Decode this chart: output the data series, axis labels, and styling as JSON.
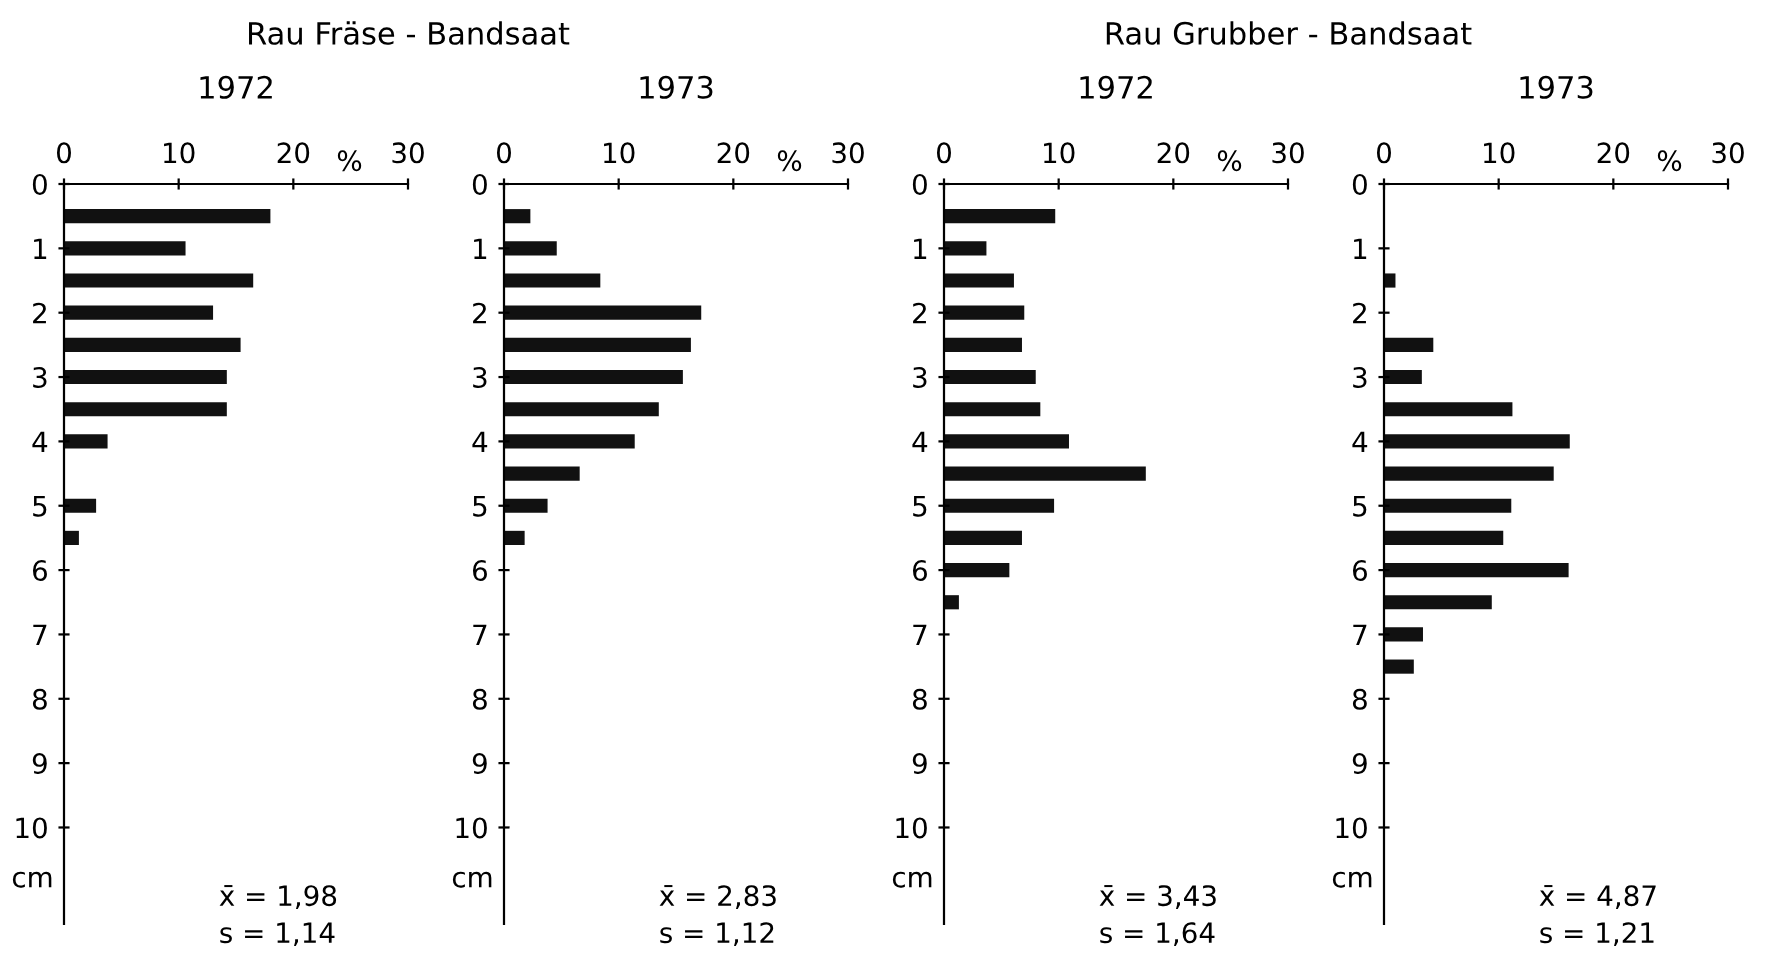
{
  "chart_data": [
    {
      "type": "bar",
      "orientation": "horizontal",
      "title": "Rau Fräse - Bandsaat",
      "subtitle": "1972",
      "xlabel": "%",
      "ylabel": "cm",
      "x": [
        0.5,
        1,
        1.5,
        2,
        2.5,
        3,
        3.5,
        4,
        5,
        5.5
      ],
      "values": [
        18.0,
        10.6,
        16.5,
        13.0,
        15.4,
        14.2,
        14.2,
        3.8,
        2.8,
        1.3
      ],
      "color": "#111111",
      "xlim": [
        0,
        30
      ],
      "xticks": [
        0,
        10,
        20,
        30
      ],
      "ylim": [
        11.5,
        0
      ],
      "yticks": [
        0,
        1,
        2,
        3,
        4,
        5,
        6,
        7,
        8,
        9,
        10
      ],
      "annotations": [
        "x̄ = 1,98",
        "s = 1,14"
      ],
      "grid": false
    },
    {
      "type": "bar",
      "orientation": "horizontal",
      "subtitle": "1973",
      "xlabel": "%",
      "ylabel": "cm",
      "x": [
        0.5,
        1,
        1.5,
        2,
        2.5,
        3,
        3.5,
        4,
        4.5,
        5,
        5.5
      ],
      "values": [
        2.3,
        4.6,
        8.4,
        17.2,
        16.3,
        15.6,
        13.5,
        11.4,
        6.6,
        3.8,
        1.8
      ],
      "color": "#111111",
      "xlim": [
        0,
        30
      ],
      "xticks": [
        0,
        10,
        20,
        30
      ],
      "ylim": [
        11.5,
        0
      ],
      "yticks": [
        0,
        1,
        2,
        3,
        4,
        5,
        6,
        7,
        8,
        9,
        10
      ],
      "annotations": [
        "x̄ = 2,83",
        "s = 1,12"
      ],
      "grid": false
    },
    {
      "type": "bar",
      "orientation": "horizontal",
      "title": "Rau Grubber - Bandsaat",
      "subtitle": "1972",
      "xlabel": "%",
      "ylabel": "cm",
      "x": [
        0.5,
        1,
        1.5,
        2,
        2.5,
        3,
        3.5,
        4,
        4.5,
        5,
        5.5,
        6,
        6.5
      ],
      "values": [
        9.7,
        3.7,
        6.1,
        7.0,
        6.8,
        8.0,
        8.4,
        10.9,
        17.6,
        9.6,
        6.8,
        5.7,
        1.3
      ],
      "color": "#111111",
      "xlim": [
        0,
        30
      ],
      "xticks": [
        0,
        10,
        20,
        30
      ],
      "ylim": [
        11.5,
        0
      ],
      "yticks": [
        0,
        1,
        2,
        3,
        4,
        5,
        6,
        7,
        8,
        9,
        10
      ],
      "annotations": [
        "x̄ = 3,43",
        "s = 1,64"
      ],
      "grid": false
    },
    {
      "type": "bar",
      "orientation": "horizontal",
      "subtitle": "1973",
      "xlabel": "%",
      "ylabel": "cm",
      "x": [
        1.5,
        2.5,
        3,
        3.5,
        4,
        4.5,
        5,
        5.5,
        6,
        6.5,
        7,
        7.5
      ],
      "values": [
        1.0,
        4.3,
        3.3,
        11.2,
        16.2,
        14.8,
        11.1,
        10.4,
        16.1,
        9.4,
        3.4,
        2.6
      ],
      "color": "#111111",
      "xlim": [
        0,
        30
      ],
      "xticks": [
        0,
        10,
        20,
        30
      ],
      "ylim": [
        11.5,
        0
      ],
      "yticks": [
        0,
        1,
        2,
        3,
        4,
        5,
        6,
        7,
        8,
        9,
        10
      ],
      "annotations": [
        "x̄ = 4,87",
        "s = 1,21"
      ],
      "grid": false
    }
  ]
}
